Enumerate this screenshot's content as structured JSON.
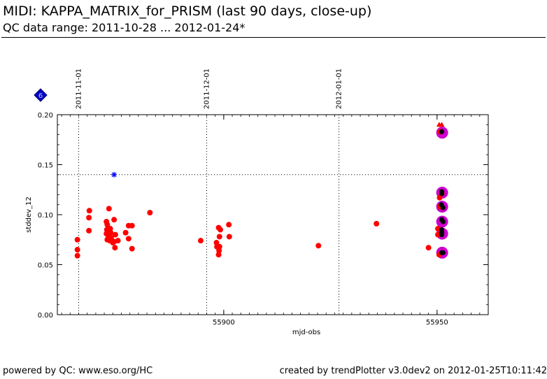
{
  "header": {
    "title": "MIDI: KAPPA_MATRIX_for_PRISM (last 90 days, close-up)",
    "subtitle": "QC data range: 2011-10-28 ... 2012-01-24*"
  },
  "footer": {
    "left": "powered by QC: www.eso.org/HC",
    "right": "created by trendPlotter v3.0dev2 on 2012-01-25T10:11:42"
  },
  "badge": {
    "label": "6",
    "color": "#0000cc"
  },
  "chart_data": {
    "type": "scatter",
    "xlabel": "mjd-obs",
    "ylabel": "stddev_12",
    "xlim": [
      55861,
      55962
    ],
    "ylim": [
      0.0,
      0.2
    ],
    "x_ticks": [
      55900,
      55950
    ],
    "y_ticks": [
      0.0,
      0.05,
      0.1,
      0.15,
      0.2
    ],
    "y_tick_labels": [
      "0.00",
      "0.05",
      "0.10",
      "0.15",
      "0.20"
    ],
    "threshold_line": 0.14,
    "date_lines": [
      {
        "label": "2011-11-01",
        "mjd": 55866
      },
      {
        "label": "2011-12-01",
        "mjd": 55896
      },
      {
        "label": "2012-01-01",
        "mjd": 55927
      }
    ],
    "colors": {
      "red": "#ff0000",
      "magenta": "#cc00cc",
      "black": "#000000",
      "blue": "#0000ff"
    },
    "red_points": [
      [
        55865.7,
        0.075
      ],
      [
        55865.7,
        0.065
      ],
      [
        55865.7,
        0.059
      ],
      [
        55868.5,
        0.104
      ],
      [
        55868.4,
        0.097
      ],
      [
        55868.4,
        0.084
      ],
      [
        55872.5,
        0.093
      ],
      [
        55872.7,
        0.09
      ],
      [
        55872.6,
        0.085
      ],
      [
        55872.5,
        0.081
      ],
      [
        55872.7,
        0.075
      ],
      [
        55873.0,
        0.078
      ],
      [
        55873.3,
        0.074
      ],
      [
        55873.1,
        0.106
      ],
      [
        55873.4,
        0.086
      ],
      [
        55873.5,
        0.082
      ],
      [
        55873.6,
        0.077
      ],
      [
        55873.8,
        0.074
      ],
      [
        55874.0,
        0.072
      ],
      [
        55874.3,
        0.073
      ],
      [
        55874.6,
        0.08
      ],
      [
        55874.3,
        0.095
      ],
      [
        55874.5,
        0.067
      ],
      [
        55875.2,
        0.074
      ],
      [
        55877.0,
        0.082
      ],
      [
        55877.7,
        0.089
      ],
      [
        55877.7,
        0.076
      ],
      [
        55878.5,
        0.089
      ],
      [
        55878.5,
        0.066
      ],
      [
        55882.7,
        0.102
      ],
      [
        55894.6,
        0.074
      ],
      [
        55898.3,
        0.072
      ],
      [
        55898.4,
        0.068
      ],
      [
        55898.8,
        0.087
      ],
      [
        55899.0,
        0.078
      ],
      [
        55899.0,
        0.068
      ],
      [
        55898.9,
        0.064
      ],
      [
        55898.8,
        0.06
      ],
      [
        55899.2,
        0.085
      ],
      [
        55901.2,
        0.09
      ],
      [
        55901.3,
        0.078
      ],
      [
        55922.2,
        0.069
      ],
      [
        55935.8,
        0.091
      ],
      [
        55948.0,
        0.067
      ],
      [
        55950.2,
        0.086
      ],
      [
        55950.2,
        0.08
      ],
      [
        55950.5,
        0.06
      ],
      [
        55950.6,
        0.117
      ],
      [
        55950.7,
        0.108
      ],
      [
        55950.8,
        0.183
      ],
      [
        55951.1,
        0.121
      ]
    ],
    "red_triangles": [
      [
        55950.5,
        0.19
      ],
      [
        55951.1,
        0.19
      ]
    ],
    "magenta_points": [
      [
        55951.2,
        0.182
      ],
      [
        55951.2,
        0.122
      ],
      [
        55951.2,
        0.108
      ],
      [
        55951.2,
        0.093
      ],
      [
        55951.2,
        0.081
      ],
      [
        55951.2,
        0.062
      ]
    ],
    "black_points": [
      [
        55951.1,
        0.183
      ],
      [
        55951.1,
        0.123
      ],
      [
        55951.1,
        0.121
      ],
      [
        55951.0,
        0.11
      ],
      [
        55951.4,
        0.107
      ],
      [
        55951.1,
        0.095
      ],
      [
        55951.4,
        0.093
      ],
      [
        55951.1,
        0.085
      ],
      [
        55951.1,
        0.082
      ],
      [
        55951.1,
        0.08
      ],
      [
        55951.1,
        0.062
      ],
      [
        55951.4,
        0.062
      ]
    ],
    "blue_stars": [
      [
        55874.3,
        0.14
      ]
    ]
  }
}
